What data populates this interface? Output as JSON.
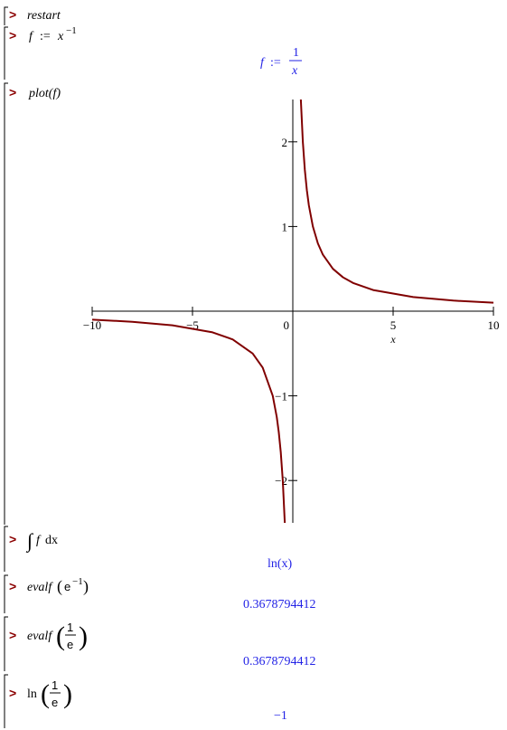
{
  "prompt": ">",
  "cells": [
    {
      "input": [
        "restart"
      ]
    },
    {
      "input": [
        "f",
        ":=",
        "x",
        "−1"
      ],
      "output": [
        "f",
        ":=",
        "1",
        "x"
      ]
    },
    {
      "input": [
        "plot(f)"
      ]
    },
    {
      "input": [
        "∫",
        "f",
        "dx"
      ],
      "output": [
        "ln(x)"
      ]
    },
    {
      "input": [
        "evalf",
        "e",
        "−1"
      ],
      "output": [
        "0.3678794412"
      ]
    },
    {
      "input": [
        "evalf",
        "1",
        "e"
      ],
      "output": [
        "0.3678794412"
      ]
    },
    {
      "input": [
        "ln",
        "1",
        "e"
      ],
      "output": [
        "−1"
      ]
    }
  ],
  "chart_data": {
    "type": "line",
    "x_label": "x",
    "x": [
      -10,
      -8,
      -6,
      -4,
      -3,
      -2,
      -1.5,
      -1,
      -0.8,
      -0.7,
      -0.6,
      -0.5,
      -0.4,
      0,
      0.4,
      0.5,
      0.6,
      0.7,
      0.8,
      1,
      1.25,
      1.5,
      2,
      2.5,
      3,
      4,
      6,
      8,
      10
    ],
    "series": [
      {
        "color": "#800000",
        "values": [
          -0.1,
          -0.125,
          -0.1667,
          -0.25,
          -0.3333,
          -0.5,
          -0.6667,
          -1,
          -1.25,
          -1.4286,
          -1.6667,
          -2,
          -2.5,
          null,
          2.5,
          2,
          1.6667,
          1.4286,
          1.25,
          1,
          0.8,
          0.6667,
          0.5,
          0.4,
          0.3333,
          0.25,
          0.1667,
          0.125,
          0.1
        ]
      }
    ],
    "xlim": [
      -10,
      10
    ],
    "ylim": [
      -2.5,
      2.5
    ],
    "xticks": [
      {
        "value": -10,
        "label": "−10"
      },
      {
        "value": -5,
        "label": "−5"
      },
      0,
      5,
      10
    ],
    "yticks": [
      {
        "value": -2,
        "label": "−2"
      },
      {
        "value": -1,
        "label": "−1"
      },
      1,
      2
    ]
  }
}
